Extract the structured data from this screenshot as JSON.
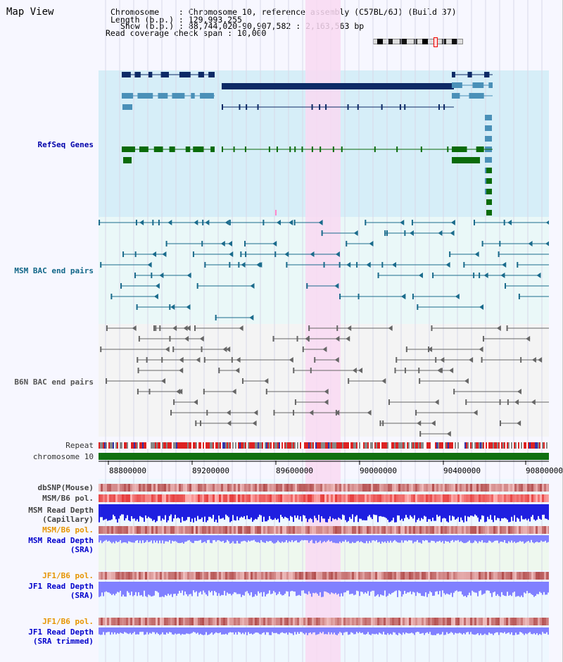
{
  "app": {
    "title": "Map View"
  },
  "info": {
    "chromosome_line": "Chromosome    : Chromosome 10, reference assembly (C57BL/6J) (Build 37)",
    "length_line": "Length (b.p.) : 129,993,255",
    "show_line": "Show (b.p.) : 88,744,020-90,907,582 : 2,163,563 bp",
    "coverage_line": "Read coverage check span : 10,000"
  },
  "colors": {
    "refseq_bg": "#d6eef8",
    "bac_bg": "#eaf8f8",
    "highlight": "#f9d9f2",
    "gene_dark": "#0d2a66",
    "gene_mid": "#4a90b8",
    "gene_green": "#0a6b0a",
    "msm_bac": "#1a6b8c",
    "b6n_bac": "#666666",
    "chrom_green": "#107010",
    "depth_blue": "#1f1fe0",
    "depth_light": "#8080ff",
    "pol_red": "#ee4444"
  },
  "tracks": {
    "refseq": "RefSeq Genes",
    "msm_bac": "MSM BAC end pairs",
    "b6n_bac": "B6N BAC end pairs",
    "repeat": "Repeat",
    "chromosome": "chromosome 10",
    "dbsnp": "dbSNP(Mouse)",
    "msm_b6_pol": "MSM/B6 pol.",
    "msm_depth_cap_1": "MSM Read Depth",
    "msm_depth_cap_2": "(Capillary)",
    "msm_b6_pol_2": "MSM/B6 pol.",
    "msm_depth_sra_1": "MSM Read Depth",
    "msm_depth_sra_2": "(SRA)",
    "jf1_b6_pol": "JF1/B6 pol.",
    "jf1_depth_sra_1": "JF1 Read Depth",
    "jf1_depth_sra_2": "(SRA)",
    "jf1_b6_pol_2": "JF1/B6 pol.",
    "jf1_depth_trim_1": "JF1 Read Depth",
    "jf1_depth_trim_2": "(SRA trimmed)"
  },
  "axis": {
    "ticks": [
      "88800000",
      "89200000",
      "89600000",
      "90000000",
      "90400000",
      "90800000"
    ]
  }
}
